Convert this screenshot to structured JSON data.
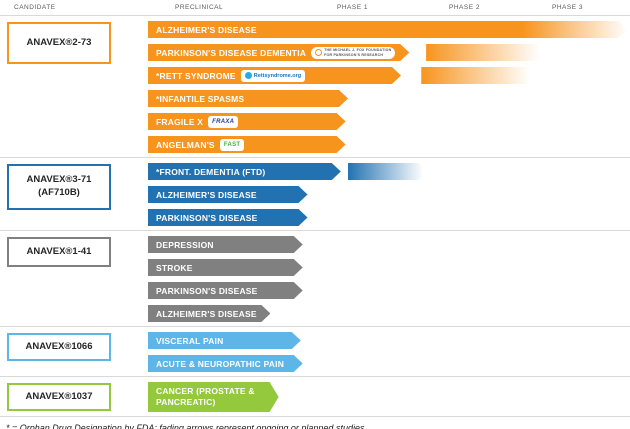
{
  "header": {
    "columns": [
      "CANDIDATE",
      "PRECLINICAL",
      "PHASE 1",
      "PHASE 2",
      "PHASE 3"
    ]
  },
  "footnote": "* = Orphan Drug Designation by FDA; fading arrows represent ongoing or planned studies",
  "logos": {
    "mjff": {
      "line1": "THE MICHAEL J. FOX FOUNDATION",
      "line2": "FOR PARKINSON'S RESEARCH"
    },
    "rett": {
      "text": "Rettsyndrome.org"
    },
    "fraxa": {
      "text": "FRAXA"
    },
    "fast": {
      "text": "FAST"
    }
  },
  "groups": [
    {
      "name": "ANAVEX®2-73",
      "name_lines": [
        "ANAVEX®2-73"
      ],
      "color": "#F7941E",
      "rows": [
        {
          "label": "ALZHEIMER'S DISEASE",
          "solid_pct": 99.5,
          "gradient_from": 78
        },
        {
          "label": "PARKINSON'S DISEASE DEMENTIA",
          "solid_pct": 54.2,
          "logo": "mjff",
          "fade": {
            "start_pct": 57.7,
            "width_pct": 25
          }
        },
        {
          "label": "*RETT SYNDROME",
          "solid_pct": 52.5,
          "logo": "rett",
          "fade": {
            "start_pct": 56.7,
            "width_pct": 24
          }
        },
        {
          "label": "*INFANTILE SPASMS",
          "solid_pct": 41.5
        },
        {
          "label": "FRAGILE X",
          "solid_pct": 41.0,
          "logo": "fraxa"
        },
        {
          "label": "ANGELMAN'S",
          "solid_pct": 41.0,
          "logo": "fast"
        }
      ]
    },
    {
      "name": "ANAVEX®3-71 (AF710B)",
      "name_lines": [
        "ANAVEX®3-71",
        "(AF710B)"
      ],
      "color": "#2272B2",
      "rows": [
        {
          "label": "*FRONT. DEMENTIA (FTD)",
          "solid_pct": 40.0,
          "fade": {
            "start_pct": 41.5,
            "width_pct": 16.5
          }
        },
        {
          "label": "ALZHEIMER'S DISEASE",
          "solid_pct": 33.1
        },
        {
          "label": "PARKINSON'S DISEASE",
          "solid_pct": 33.1
        }
      ]
    },
    {
      "name": "ANAVEX®1-41",
      "name_lines": [
        "ANAVEX®1-41"
      ],
      "color": "#808080",
      "rows": [
        {
          "label": "DEPRESSION",
          "solid_pct": 32.1
        },
        {
          "label": "STROKE",
          "solid_pct": 32.1
        },
        {
          "label": "PARKINSON'S DISEASE",
          "solid_pct": 32.1
        },
        {
          "label": "ALZHEIMER'S DISEASE",
          "solid_pct": 25.4
        }
      ]
    },
    {
      "name": "ANAVEX®1066",
      "name_lines": [
        "ANAVEX®1066"
      ],
      "color": "#5EB6E8",
      "rows": [
        {
          "label": "VISCERAL PAIN",
          "solid_pct": 31.7
        },
        {
          "label": "ACUTE & NEUROPATHIC PAIN",
          "solid_pct": 32.1
        }
      ]
    },
    {
      "name": "ANAVEX®1037",
      "name_lines": [
        "ANAVEX®1037"
      ],
      "color": "#94C83D",
      "rows": [
        {
          "label": "CANCER (PROSTATE & PANCREATIC)",
          "solid_pct": 27.1,
          "tall": true
        }
      ]
    }
  ]
}
